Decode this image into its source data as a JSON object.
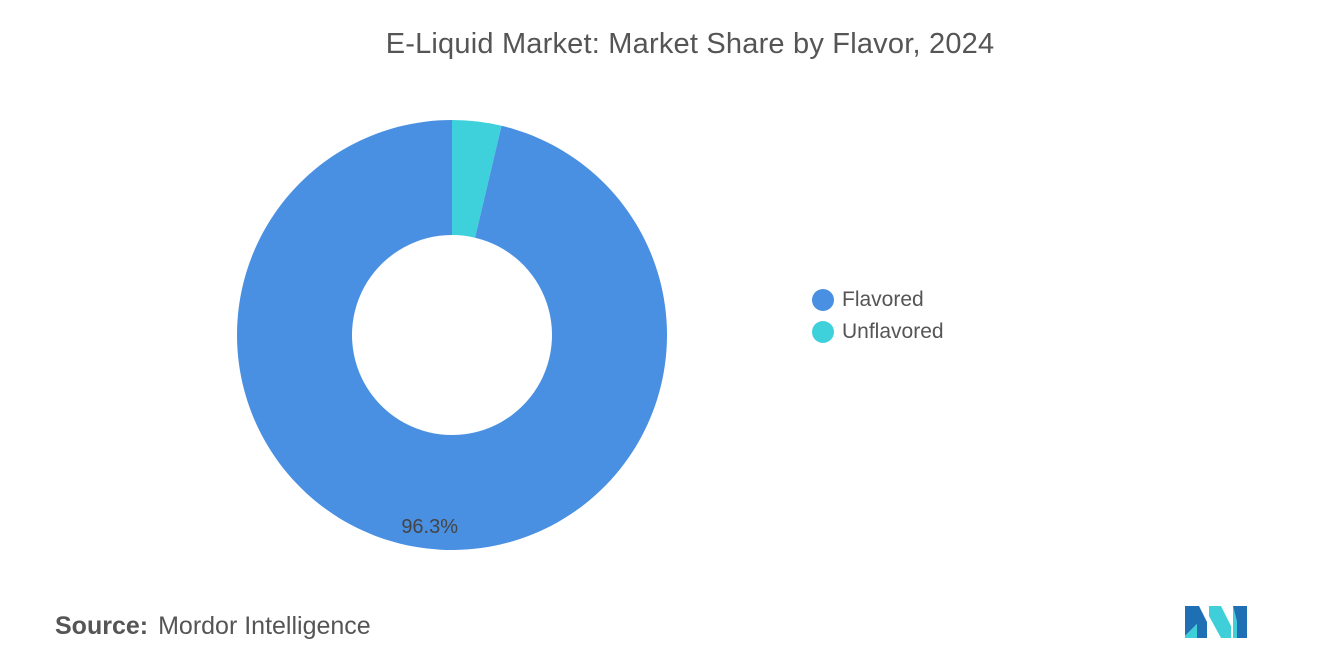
{
  "chart_data": {
    "type": "pie",
    "style": "donut",
    "title": "E-Liquid Market: Market Share by Flavor, 2024",
    "slices": [
      {
        "label": "Flavored",
        "value": 96.3,
        "color": "#4A90E2",
        "data_label": "96.3%"
      },
      {
        "label": "Unflavored",
        "value": 3.7,
        "color": "#3ED1DB"
      }
    ],
    "legend_position": "right"
  },
  "source": {
    "prefix": "Source:",
    "text": "Mordor Intelligence"
  },
  "logo": {
    "icon": "mordor-intelligence-logo",
    "colors": [
      "#1F6FB5",
      "#3ECFD8"
    ]
  }
}
